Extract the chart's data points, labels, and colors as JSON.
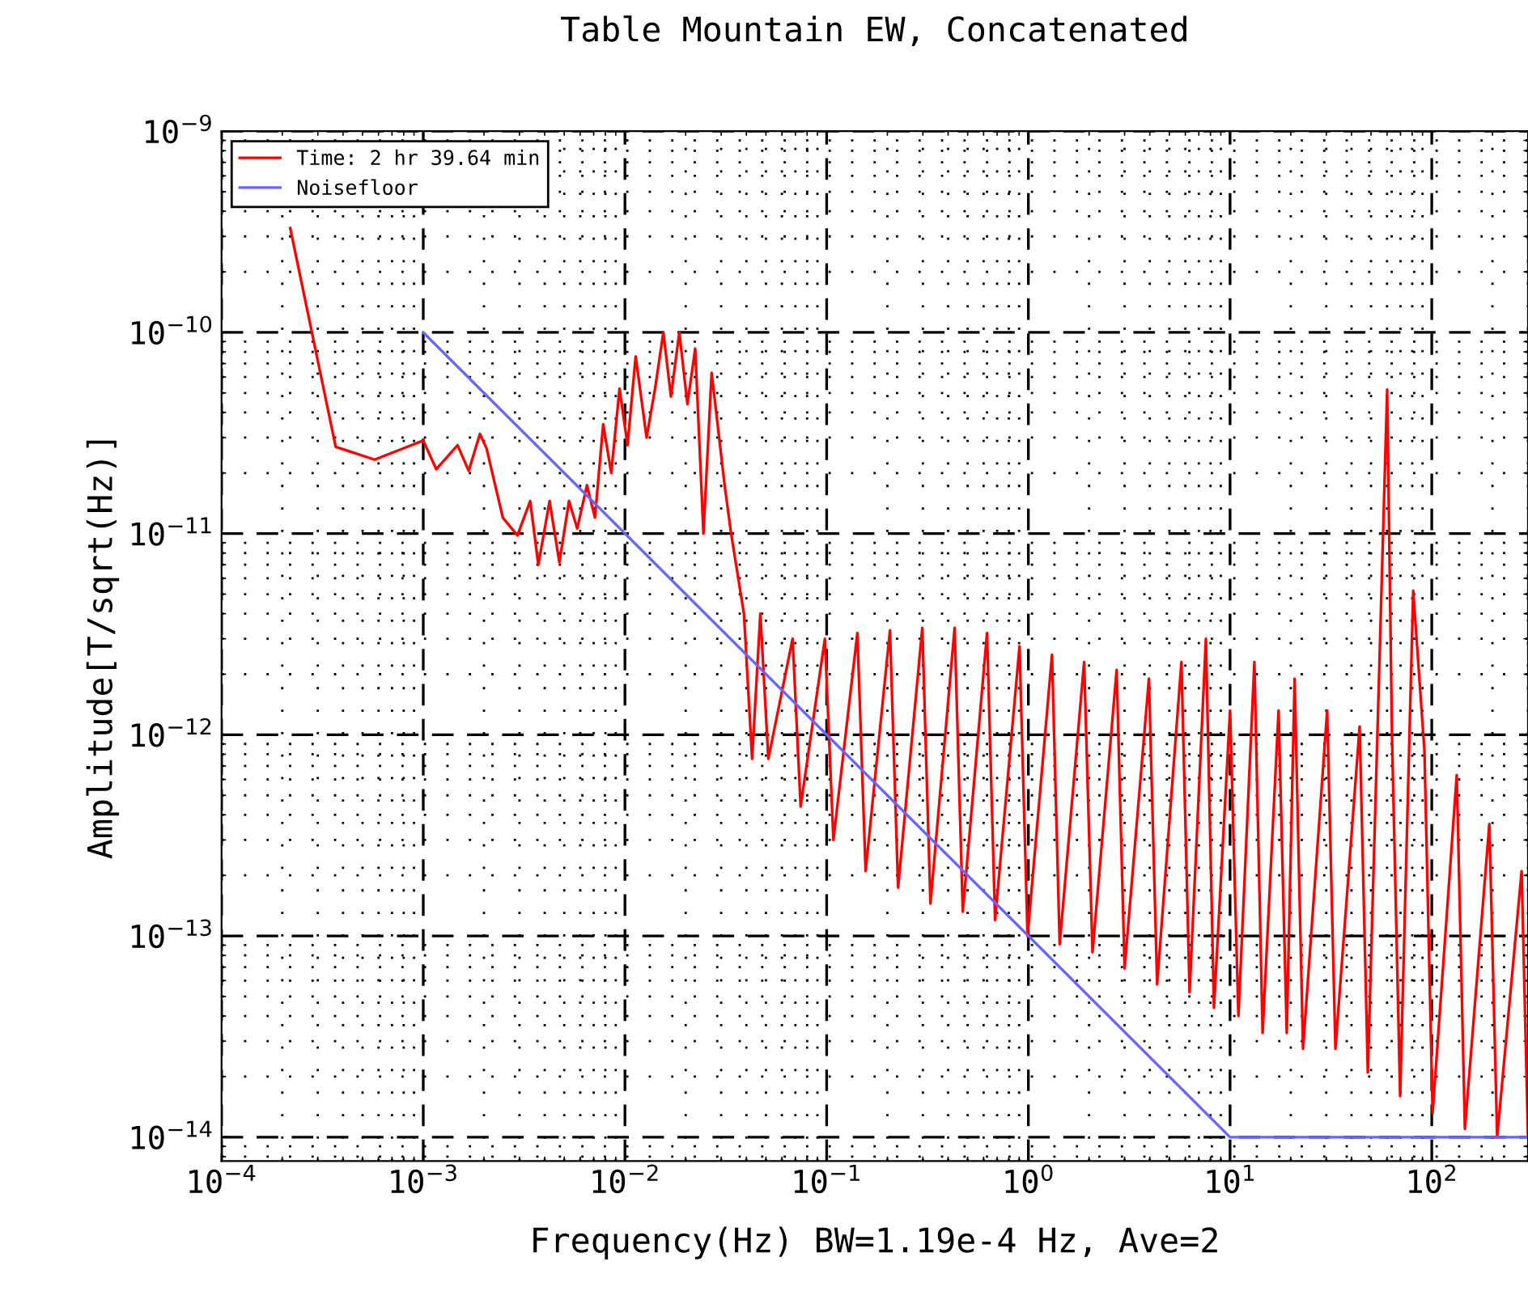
{
  "chart_data": {
    "type": "line",
    "title": "Table Mountain EW, Concatenated",
    "xlabel": "Frequency(Hz) BW=1.19e-4 Hz, Ave=2",
    "ylabel": "Amplitude[T/sqrt(Hz)]",
    "log": "xy",
    "grid": true,
    "legend": "top left",
    "line_style": "solid",
    "xlim": [
      0.0001,
      300
    ],
    "ylim": [
      7.6e-15,
      1e-09
    ],
    "xticks": [
      {
        "value": 0.0001,
        "label": "10$^{−4}$"
      },
      {
        "value": 0.001,
        "label": "10$^{−3}$"
      },
      {
        "value": 0.01,
        "label": "10$^{−2}$"
      },
      {
        "value": 0.1,
        "label": "10$^{−1}$"
      },
      {
        "value": 1,
        "label": "10$^{0}$"
      },
      {
        "value": 10,
        "label": "10$^{1}$"
      },
      {
        "value": 100,
        "label": "10$^{2}$"
      }
    ],
    "yticks": [
      {
        "value": 1e-14,
        "label": "10$^{−14}$"
      },
      {
        "value": 1e-13,
        "label": "10$^{−13}$"
      },
      {
        "value": 1e-12,
        "label": "10$^{−12}$"
      },
      {
        "value": 1e-11,
        "label": "10$^{−11}$"
      },
      {
        "value": 1e-10,
        "label": "10$^{−10}$"
      },
      {
        "value": 1e-09,
        "label": "10$^{−9}$"
      }
    ],
    "series": [
      {
        "name": "Time: 2 hr 39.64 min",
        "color": "#ff0000",
        "x": [
          0.000219,
          0.000368,
          0.000574,
          0.001,
          0.00116,
          0.00148,
          0.00168,
          0.00191,
          0.00206,
          0.00248,
          0.00293,
          0.00339,
          0.00372,
          0.00423,
          0.00473,
          0.00528,
          0.0058,
          0.00648,
          0.0071,
          0.0078,
          0.00855,
          0.0094,
          0.0103,
          0.0113,
          0.0128,
          0.0141,
          0.0155,
          0.0169,
          0.0186,
          0.0204,
          0.0223,
          0.0245,
          0.0269,
          0.0312,
          0.0336,
          0.0389,
          0.0427,
          0.0469,
          0.0514,
          0.0678,
          0.0743,
          0.098,
          0.108,
          0.142,
          0.156,
          0.206,
          0.226,
          0.298,
          0.327,
          0.431,
          0.473,
          0.624,
          0.684,
          0.904,
          0.991,
          1.31,
          1.43,
          1.89,
          2.08,
          2.74,
          3.0,
          3.96,
          4.35,
          5.74,
          6.3,
          7.59,
          8.32,
          10,
          11.0,
          13.2,
          14.5,
          17.4,
          19.1,
          20.9,
          23.0,
          30.3,
          33.3,
          43.9,
          48.2,
          60.1,
          63.5,
          69.7,
          80.9,
          92.0,
          101,
          133,
          146,
          193,
          211,
          279,
          300
        ],
        "values": [
          3.3e-10,
          2.7e-11,
          2.33e-11,
          2.9e-11,
          2.09e-11,
          2.75e-11,
          2.05e-11,
          3.13e-11,
          2.65e-11,
          1.2e-11,
          9.8e-12,
          1.45e-11,
          7e-12,
          1.45e-11,
          7.2e-12,
          1.45e-11,
          1.06e-11,
          1.74e-11,
          1.2e-11,
          3.5e-11,
          2e-11,
          5.25e-11,
          2.75e-11,
          7.6e-11,
          3e-11,
          5.25e-11,
          1e-10,
          4.8e-11,
          1e-10,
          4.4e-11,
          8.3e-11,
          1e-11,
          6.3e-11,
          1.74e-11,
          1e-11,
          4e-12,
          7.6e-13,
          4e-12,
          7.6e-13,
          3e-12,
          4.4e-13,
          3e-12,
          3e-13,
          3.2e-12,
          2.1e-13,
          3.3e-12,
          1.74e-13,
          3.4e-12,
          1.45e-13,
          3.4e-12,
          1.32e-13,
          3.2e-12,
          1.2e-13,
          2.75e-12,
          1e-13,
          2.5e-12,
          9.1e-14,
          2.3e-12,
          8.3e-14,
          2.1e-12,
          6.9e-14,
          1.9e-12,
          5.75e-14,
          2.3e-12,
          5.25e-14,
          3e-12,
          4.4e-14,
          1.32e-12,
          4e-14,
          2.3e-12,
          3.3e-14,
          1.32e-12,
          3.3e-14,
          1.9e-12,
          2.75e-14,
          1.32e-12,
          2.75e-14,
          1.1e-12,
          2.1e-14,
          5.2e-11,
          1e-12,
          1.6e-14,
          5.2e-12,
          8.3e-13,
          1.32e-14,
          6.3e-13,
          1.1e-14,
          3.6e-13,
          1e-14,
          2.1e-13,
          1e-14
        ]
      },
      {
        "name": "Noisefloor",
        "color": "#6666ff",
        "x": [
          0.001,
          10,
          300
        ],
        "values": [
          1e-10,
          1e-14,
          1e-14
        ]
      }
    ]
  }
}
